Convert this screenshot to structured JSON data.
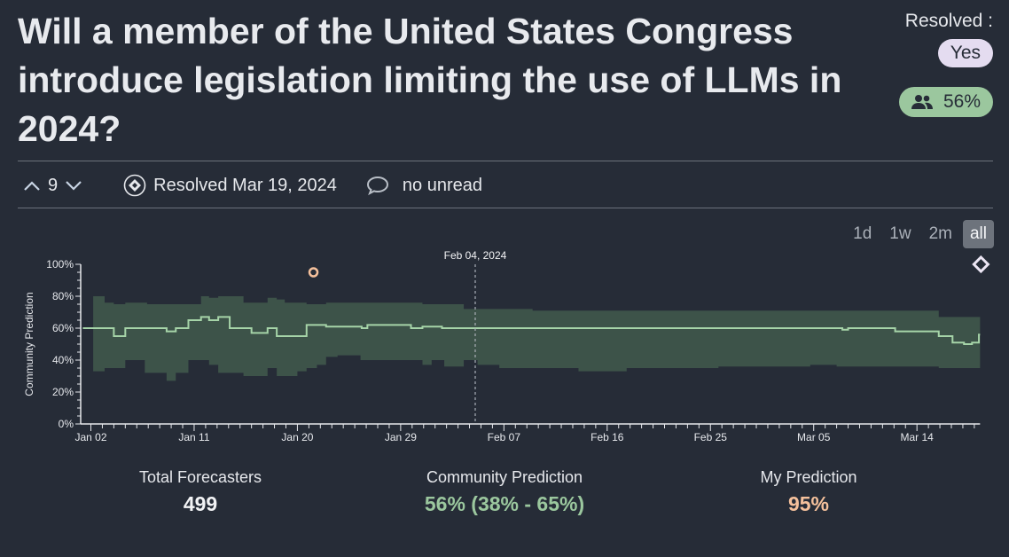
{
  "question": {
    "title": "Will a member of the United States Congress introduce legislation limiting the use of LLMs in 2024?"
  },
  "status": {
    "resolved_label": "Resolved :",
    "resolution": "Yes",
    "community_badge": "56%",
    "colors": {
      "yes_bg": "#e4dcf0",
      "cp_bg": "#9bc79e"
    }
  },
  "meta": {
    "votes": "9",
    "resolved_date": "Resolved Mar 19, 2024",
    "comments": "no unread"
  },
  "ranges": [
    "1d",
    "1w",
    "2m",
    "all"
  ],
  "stats": {
    "forecasters_label": "Total Forecasters",
    "forecasters_value": "499",
    "cp_label": "Community Prediction",
    "cp_value": "56% (38% - 65%)",
    "my_label": "My Prediction",
    "my_value": "95%"
  },
  "chart_data": {
    "type": "line",
    "ylabel": "Community Prediction",
    "ylim": [
      0,
      100
    ],
    "yticks": [
      "0%",
      "20%",
      "40%",
      "60%",
      "80%",
      "100%"
    ],
    "x_unit": "days since Jan 02, 2024",
    "xticks": [
      {
        "day": 0,
        "label": "Jan 02"
      },
      {
        "day": 9,
        "label": "Jan 11"
      },
      {
        "day": 18,
        "label": "Jan 20"
      },
      {
        "day": 27,
        "label": "Jan 29"
      },
      {
        "day": 36,
        "label": "Feb 07"
      },
      {
        "day": 45,
        "label": "Feb 16"
      },
      {
        "day": 54,
        "label": "Feb 25"
      },
      {
        "day": 63,
        "label": "Mar 05"
      },
      {
        "day": 72,
        "label": "Mar 14"
      }
    ],
    "cursor": {
      "day": 33.5,
      "label": "Feb 04, 2024"
    },
    "end_day": 77.5,
    "median": [
      [
        -0.7,
        60
      ],
      [
        2,
        55
      ],
      [
        3,
        60
      ],
      [
        6.6,
        58
      ],
      [
        7.4,
        60
      ],
      [
        8.5,
        65
      ],
      [
        9.6,
        67
      ],
      [
        10.3,
        65
      ],
      [
        11.1,
        67
      ],
      [
        12.1,
        60
      ],
      [
        14,
        57
      ],
      [
        15.4,
        60
      ],
      [
        16.2,
        55
      ],
      [
        18.8,
        62
      ],
      [
        20.5,
        61
      ],
      [
        23.6,
        60
      ],
      [
        24.1,
        62
      ],
      [
        27.9,
        60
      ],
      [
        28.9,
        61
      ],
      [
        30.6,
        60
      ],
      [
        65.5,
        59
      ],
      [
        66,
        60
      ],
      [
        70.1,
        58
      ],
      [
        73.9,
        55
      ],
      [
        75.1,
        51
      ],
      [
        76.1,
        50
      ],
      [
        76.8,
        51
      ],
      [
        77.4,
        56
      ]
    ],
    "upper": [
      [
        0.2,
        80
      ],
      [
        1.2,
        76
      ],
      [
        2,
        75
      ],
      [
        3,
        76
      ],
      [
        4.9,
        75
      ],
      [
        9.6,
        80
      ],
      [
        10.3,
        79
      ],
      [
        11.1,
        80
      ],
      [
        13.3,
        76
      ],
      [
        15.4,
        79
      ],
      [
        16.2,
        78
      ],
      [
        16.9,
        76
      ],
      [
        18.8,
        75
      ],
      [
        20.5,
        76
      ],
      [
        28.9,
        75
      ],
      [
        32.5,
        72
      ],
      [
        38.5,
        71
      ],
      [
        73.9,
        67
      ]
    ],
    "lower": [
      [
        0.2,
        33
      ],
      [
        1.2,
        35
      ],
      [
        3,
        40
      ],
      [
        4.7,
        32
      ],
      [
        6.6,
        27
      ],
      [
        7.4,
        32
      ],
      [
        8.5,
        40
      ],
      [
        10.3,
        37
      ],
      [
        11.1,
        32
      ],
      [
        13.3,
        30
      ],
      [
        15.4,
        35
      ],
      [
        16.2,
        30
      ],
      [
        18,
        33
      ],
      [
        18.8,
        35
      ],
      [
        19.7,
        37
      ],
      [
        20.5,
        42
      ],
      [
        21.5,
        43
      ],
      [
        23.5,
        40
      ],
      [
        28.9,
        37
      ],
      [
        29.7,
        40
      ],
      [
        30.8,
        36
      ],
      [
        32.5,
        40
      ],
      [
        33.7,
        37
      ],
      [
        35.6,
        35
      ],
      [
        42.5,
        33
      ],
      [
        46.7,
        35
      ],
      [
        54.7,
        36
      ],
      [
        62.7,
        37
      ],
      [
        65,
        36
      ],
      [
        73.9,
        35
      ]
    ],
    "my_prediction": {
      "day": 19.4,
      "value": 95
    },
    "resolution_marker": {
      "day": 77.5,
      "value": "Yes"
    },
    "colors": {
      "band": "#3d5349",
      "line": "#a6d4a8",
      "my": "#f5c19c",
      "axis": "#e6e8ec"
    }
  }
}
